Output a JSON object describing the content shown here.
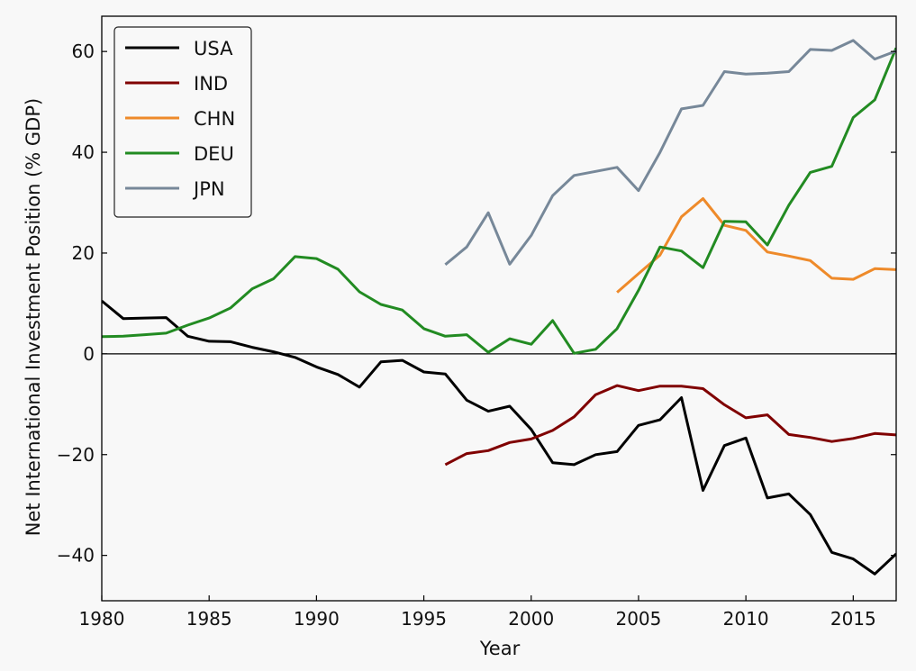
{
  "chart_data": {
    "type": "line",
    "xlabel": "Year",
    "ylabel": "Net International Investment Position (% GDP)",
    "xlim": [
      1980,
      2017
    ],
    "ylim": [
      -49,
      67
    ],
    "x_ticks": [
      1980,
      1985,
      1990,
      1995,
      2000,
      2005,
      2010,
      2015
    ],
    "y_ticks": [
      -40,
      -20,
      0,
      20,
      40,
      60
    ],
    "x_tick_labels": [
      "1980",
      "1985",
      "1990",
      "1995",
      "2000",
      "2005",
      "2010",
      "2015"
    ],
    "y_tick_labels": [
      "−40",
      "−20",
      "0",
      "20",
      "40",
      "60"
    ],
    "zero_line": true,
    "grid": false,
    "legend_position": "top-left",
    "series": [
      {
        "name": "USA",
        "color": "#000000",
        "x": [
          1980,
          1981,
          1982,
          1983,
          1984,
          1985,
          1986,
          1987,
          1988,
          1989,
          1990,
          1991,
          1992,
          1993,
          1994,
          1995,
          1996,
          1997,
          1998,
          1999,
          2000,
          2001,
          2002,
          2003,
          2004,
          2005,
          2006,
          2007,
          2008,
          2009,
          2010,
          2011,
          2012,
          2013,
          2014,
          2015,
          2016,
          2017
        ],
        "y": [
          10.5,
          7.0,
          7.1,
          7.2,
          3.5,
          2.5,
          2.4,
          1.3,
          0.4,
          -0.7,
          -2.6,
          -4.1,
          -6.6,
          -1.6,
          -1.3,
          -3.6,
          -4.0,
          -9.2,
          -11.4,
          -10.4,
          -15.0,
          -21.6,
          -22.0,
          -20.0,
          -19.4,
          -14.2,
          -13.1,
          -8.7,
          -27.1,
          -18.2,
          -16.7,
          -28.6,
          -27.8,
          -31.9,
          -39.4,
          -40.7,
          -43.7,
          -39.7
        ]
      },
      {
        "name": "IND",
        "color": "#800000",
        "x": [
          1996,
          1997,
          1998,
          1999,
          2000,
          2001,
          2002,
          2003,
          2004,
          2005,
          2006,
          2007,
          2008,
          2009,
          2010,
          2011,
          2012,
          2013,
          2014,
          2015,
          2016,
          2017
        ],
        "y": [
          -22.0,
          -19.8,
          -19.2,
          -17.6,
          -16.9,
          -15.2,
          -12.5,
          -8.1,
          -6.3,
          -7.3,
          -6.4,
          -6.4,
          -6.9,
          -10.1,
          -12.7,
          -12.1,
          -16.0,
          -16.6,
          -17.4,
          -16.8,
          -15.8,
          -16.1
        ]
      },
      {
        "name": "CHN",
        "color": "#ee8a2a",
        "x": [
          2004,
          2005,
          2006,
          2007,
          2008,
          2009,
          2010,
          2011,
          2012,
          2013,
          2014,
          2015,
          2016,
          2017
        ],
        "y": [
          12.2,
          15.9,
          19.6,
          27.2,
          30.8,
          25.5,
          24.5,
          20.2,
          19.4,
          18.5,
          15.0,
          14.8,
          16.9,
          16.7
        ]
      },
      {
        "name": "DEU",
        "color": "#228b22",
        "x": [
          1980,
          1981,
          1982,
          1983,
          1984,
          1985,
          1986,
          1987,
          1988,
          1989,
          1990,
          1991,
          1992,
          1993,
          1994,
          1995,
          1996,
          1997,
          1998,
          1999,
          2000,
          2001,
          2002,
          2003,
          2004,
          2005,
          2006,
          2007,
          2008,
          2009,
          2010,
          2011,
          2012,
          2013,
          2014,
          2015,
          2016,
          2017
        ],
        "y": [
          3.4,
          3.5,
          3.8,
          4.1,
          5.7,
          7.1,
          9.1,
          12.9,
          14.9,
          19.3,
          18.9,
          16.8,
          12.3,
          9.8,
          8.7,
          5.0,
          3.5,
          3.8,
          0.3,
          3.0,
          1.9,
          6.6,
          0.1,
          0.9,
          5.0,
          12.6,
          21.2,
          20.4,
          17.1,
          26.3,
          26.2,
          21.6,
          29.5,
          36.0,
          37.2,
          46.9,
          50.4,
          60.7
        ]
      },
      {
        "name": "JPN",
        "color": "#778899",
        "x": [
          1996,
          1997,
          1998,
          1999,
          2000,
          2001,
          2002,
          2003,
          2004,
          2005,
          2006,
          2007,
          2008,
          2009,
          2010,
          2011,
          2012,
          2013,
          2014,
          2015,
          2016,
          2017
        ],
        "y": [
          17.7,
          21.2,
          28.0,
          17.8,
          23.5,
          31.4,
          35.4,
          36.2,
          37.0,
          32.4,
          40.0,
          48.6,
          49.3,
          56.0,
          55.5,
          55.7,
          56.0,
          60.4,
          60.2,
          62.2,
          58.5,
          60.1
        ]
      }
    ]
  }
}
